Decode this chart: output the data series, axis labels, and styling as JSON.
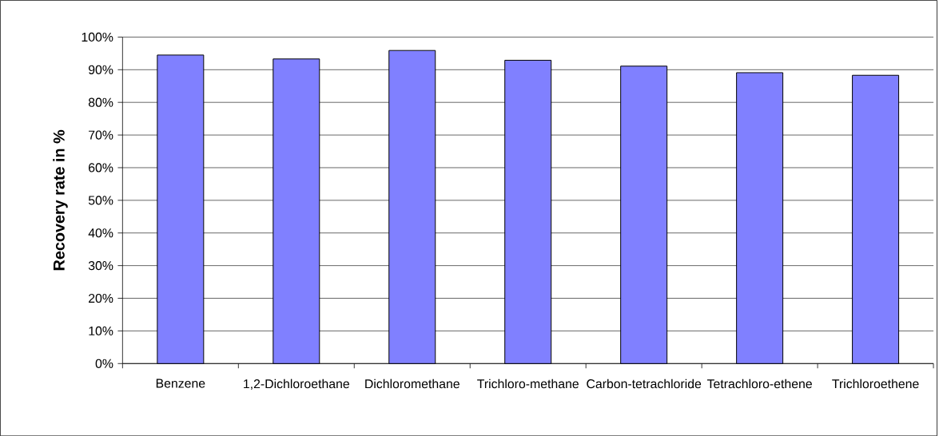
{
  "chart_data": {
    "type": "bar",
    "ylabel": "Recovery rate in %",
    "categories": [
      "Benzene",
      "1,2-Dichloroethane",
      "Dichloromethane",
      "Trichloro-methane",
      "Carbon-tetrachloride",
      "Tetrachloro-ethene",
      "Trichloroethene"
    ],
    "values": [
      94.5,
      93.3,
      95.9,
      92.9,
      91.1,
      89.1,
      88.3
    ],
    "color": "#8080ff",
    "ylim": [
      0,
      100
    ],
    "yticks": [
      {
        "value": 0,
        "label": "0%"
      },
      {
        "value": 10,
        "label": "10%"
      },
      {
        "value": 20,
        "label": "20%"
      },
      {
        "value": 30,
        "label": "30%"
      },
      {
        "value": 40,
        "label": "40%"
      },
      {
        "value": 50,
        "label": "50%"
      },
      {
        "value": 60,
        "label": "60%"
      },
      {
        "value": 70,
        "label": "70%"
      },
      {
        "value": 80,
        "label": "80%"
      },
      {
        "value": 90,
        "label": "90%"
      },
      {
        "value": 100,
        "label": "100%"
      }
    ],
    "grid": "y"
  }
}
